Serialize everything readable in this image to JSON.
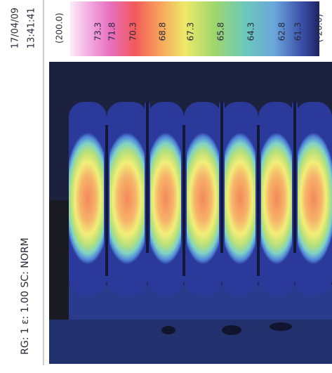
{
  "header": {
    "date": "17/04/09",
    "time": "13:41:41",
    "status": "RG: 1  ε: 1.00  SC: NORM"
  },
  "scale": {
    "max": "(200.0)",
    "min": "(-20.0)",
    "labels": [
      "73.3",
      "71.8",
      "70.3",
      "68.8",
      "67.3",
      "65.8",
      "64.3",
      "62.8",
      "61.3"
    ]
  }
}
